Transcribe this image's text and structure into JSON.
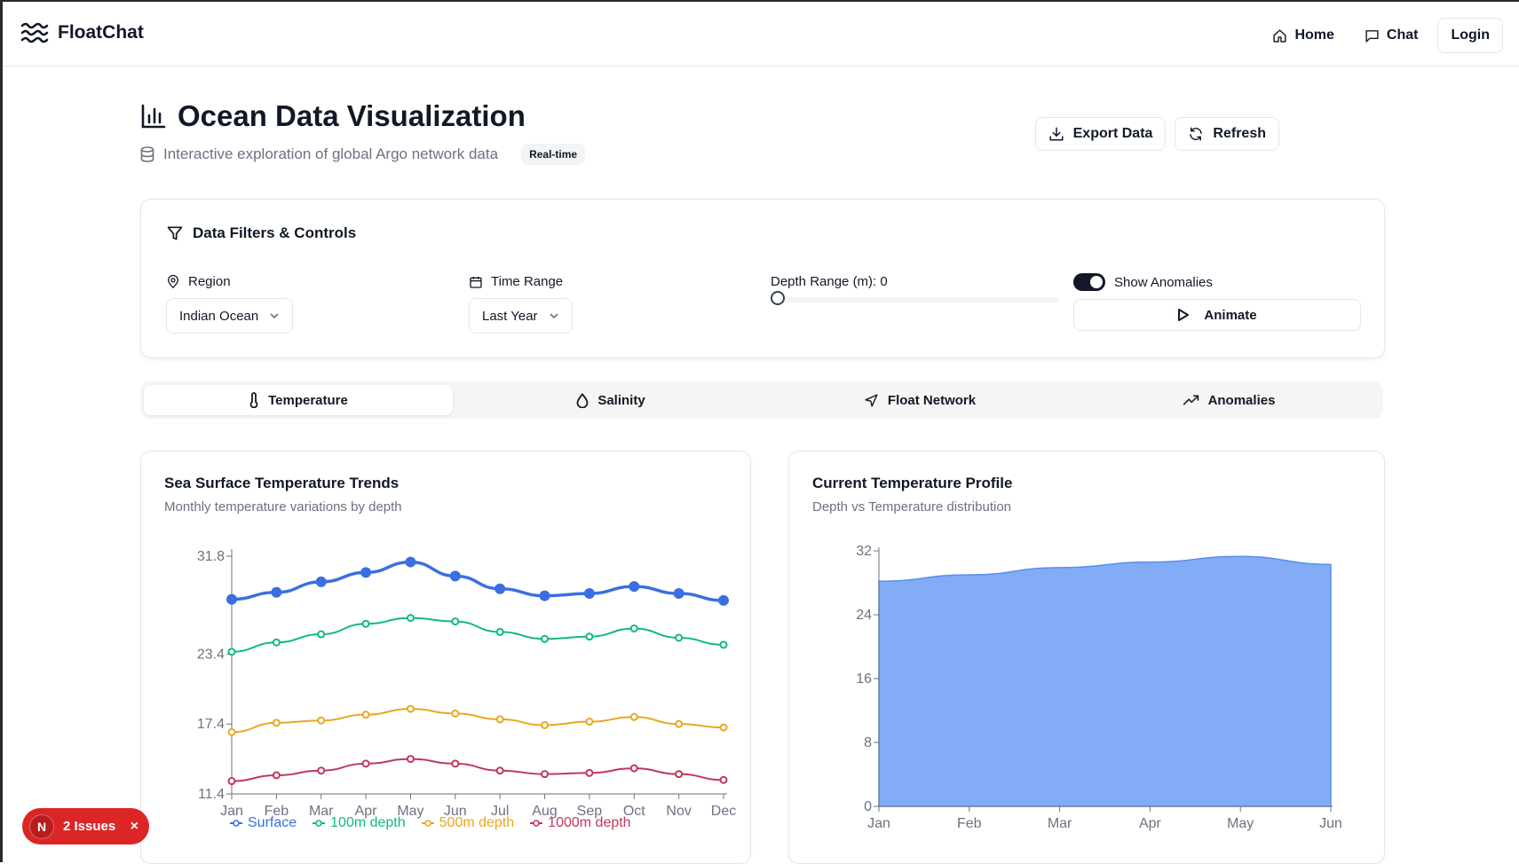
{
  "app": {
    "name": "FloatChat",
    "nav": {
      "home": "Home",
      "chat": "Chat",
      "login": "Login"
    }
  },
  "page": {
    "title": "Ocean Data Visualization",
    "subtitle": "Interactive exploration of global Argo network data",
    "badge": "Real-time",
    "export_label": "Export Data",
    "refresh_label": "Refresh"
  },
  "filters": {
    "title": "Data Filters & Controls",
    "region_label": "Region",
    "region_value": "Indian Ocean",
    "time_label": "Time Range",
    "time_value": "Last Year",
    "depth_label": "Depth Range (m): 0",
    "depth_value": 0,
    "anomalies_label": "Show Anomalies",
    "anomalies_on": true,
    "animate_label": "Animate"
  },
  "tabs": [
    {
      "label": "Temperature",
      "icon": "thermometer-icon",
      "active": true
    },
    {
      "label": "Salinity",
      "icon": "droplet-icon",
      "active": false
    },
    {
      "label": "Float Network",
      "icon": "navigation-icon",
      "active": false
    },
    {
      "label": "Anomalies",
      "icon": "trending-up-icon",
      "active": false
    }
  ],
  "cards": {
    "trends": {
      "title": "Sea Surface Temperature Trends",
      "subtitle": "Monthly temperature variations by depth"
    },
    "profile": {
      "title": "Current Temperature Profile",
      "subtitle": "Depth vs Temperature distribution"
    }
  },
  "chart_data": [
    {
      "type": "line",
      "categories": [
        "Jan",
        "Feb",
        "Mar",
        "Apr",
        "May",
        "Jun",
        "Jul",
        "Aug",
        "Sep",
        "Oct",
        "Nov",
        "Dec"
      ],
      "ylim": [
        11.4,
        31.8
      ],
      "yticks": [
        "31.8",
        "23.4",
        "17.4",
        "11.4"
      ],
      "series": [
        {
          "name": "Surface",
          "color": "#3b6fe0",
          "values": [
            28.1,
            28.7,
            29.6,
            30.4,
            31.3,
            30.1,
            29.0,
            28.4,
            28.6,
            29.2,
            28.6,
            28.0
          ]
        },
        {
          "name": "100m depth",
          "color": "#10b981",
          "values": [
            23.6,
            24.4,
            25.1,
            26.0,
            26.5,
            26.2,
            25.3,
            24.7,
            24.9,
            25.6,
            24.8,
            24.2
          ]
        },
        {
          "name": "500m depth",
          "color": "#e8a820",
          "values": [
            16.7,
            17.5,
            17.7,
            18.2,
            18.7,
            18.3,
            17.8,
            17.3,
            17.6,
            18.0,
            17.4,
            17.1
          ]
        },
        {
          "name": "1000m depth",
          "color": "#c0395a",
          "values": [
            12.5,
            13.0,
            13.4,
            14.0,
            14.4,
            14.0,
            13.4,
            13.1,
            13.2,
            13.6,
            13.1,
            12.6
          ]
        }
      ]
    },
    {
      "type": "area",
      "categories": [
        "Jan",
        "Feb",
        "Mar",
        "Apr",
        "May",
        "Jun"
      ],
      "ylim": [
        0,
        32
      ],
      "yticks": [
        "0",
        "8",
        "16",
        "24",
        "32"
      ],
      "series": [
        {
          "name": "",
          "color": "#6d9ef5",
          "values": [
            28.2,
            29.0,
            29.9,
            30.6,
            31.3,
            30.3
          ]
        }
      ]
    }
  ],
  "issues": {
    "avatar": "N",
    "label": "2 Issues",
    "close": "×"
  }
}
